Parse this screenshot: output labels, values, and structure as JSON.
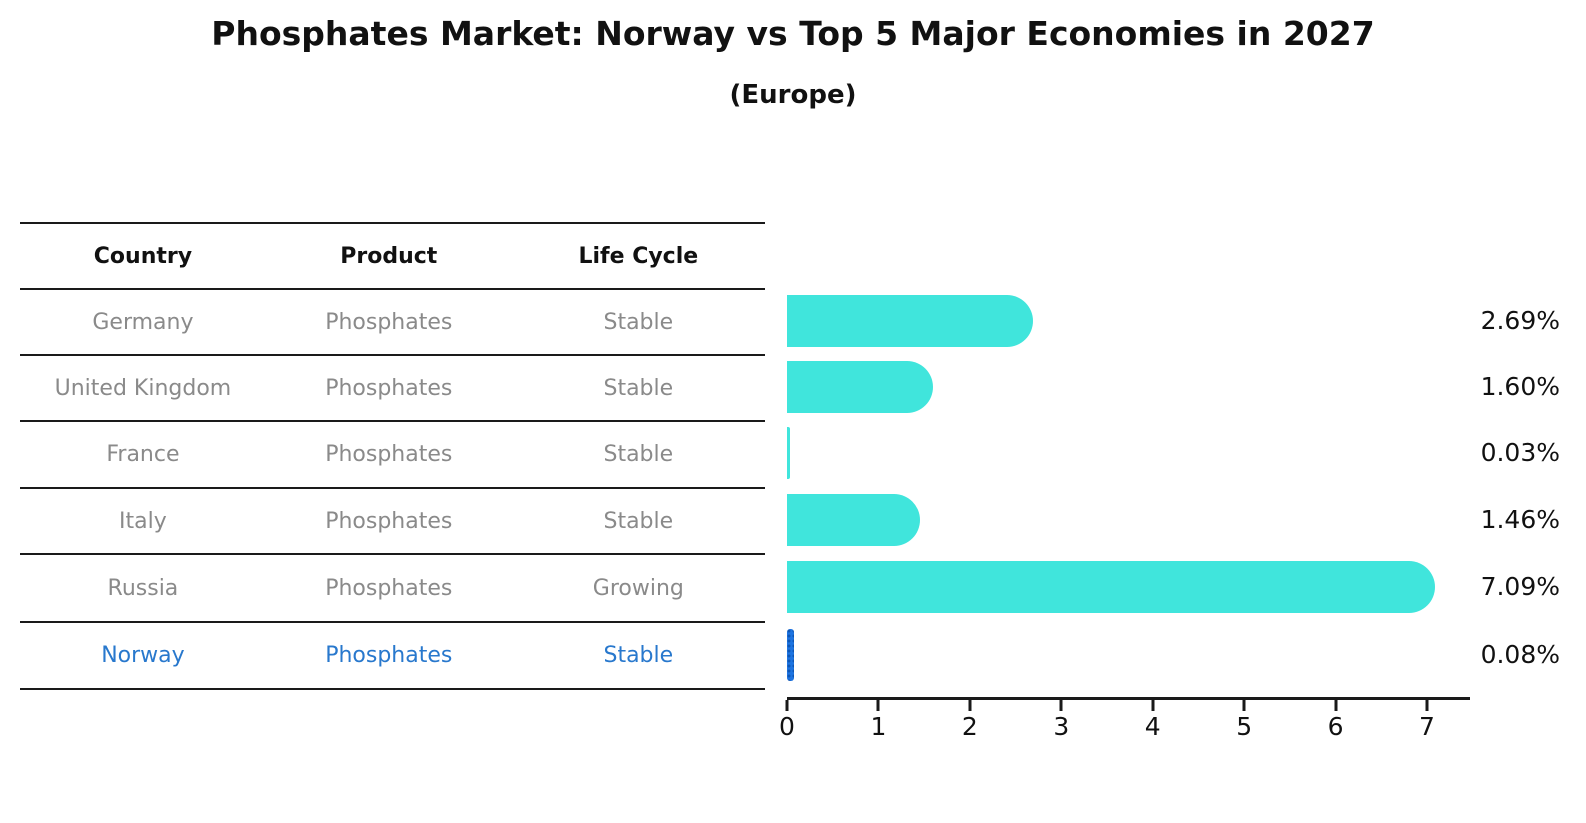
{
  "header": {
    "title": "Phosphates Market: Norway vs Top 5 Major Economies in 2027",
    "subtitle": "(Europe)"
  },
  "table": {
    "headers": {
      "country": "Country",
      "product": "Product",
      "life_cycle": "Life Cycle"
    },
    "rows": [
      {
        "country": "Germany",
        "product": "Phosphates",
        "life_cycle": "Stable",
        "highlighted": false
      },
      {
        "country": "United Kingdom",
        "product": "Phosphates",
        "life_cycle": "Stable",
        "highlighted": false
      },
      {
        "country": "France",
        "product": "Phosphates",
        "life_cycle": "Stable",
        "highlighted": false
      },
      {
        "country": "Italy",
        "product": "Phosphates",
        "life_cycle": "Stable",
        "highlighted": false
      },
      {
        "country": "Russia",
        "product": "Phosphates",
        "life_cycle": "Growing",
        "highlighted": false
      },
      {
        "country": "Norway",
        "product": "Phosphates",
        "life_cycle": "Stable",
        "highlighted": true
      }
    ]
  },
  "chart_data": {
    "type": "bar",
    "orientation": "horizontal",
    "title": "Phosphates Market: Norway vs Top 5 Major Economies in 2027",
    "subtitle": "(Europe)",
    "categories": [
      "Germany",
      "United Kingdom",
      "France",
      "Italy",
      "Russia",
      "Norway"
    ],
    "values": [
      2.69,
      1.6,
      0.03,
      1.46,
      7.09,
      0.08
    ],
    "value_labels": [
      "2.69%",
      "1.60%",
      "0.03%",
      "1.46%",
      "7.09%",
      "0.08%"
    ],
    "unit": "%",
    "x_ticks": [
      0,
      1,
      2,
      3,
      4,
      5,
      6,
      7
    ],
    "xlim": [
      0,
      7.45
    ],
    "grid": false,
    "legend": false,
    "highlight_category": "Norway",
    "colors": {
      "bar_default": "#40E5DC",
      "bar_highlight": "#1E74E1",
      "highlight_text": "#2878CD",
      "muted_text": "#8a8a8a",
      "text": "#111111"
    }
  }
}
